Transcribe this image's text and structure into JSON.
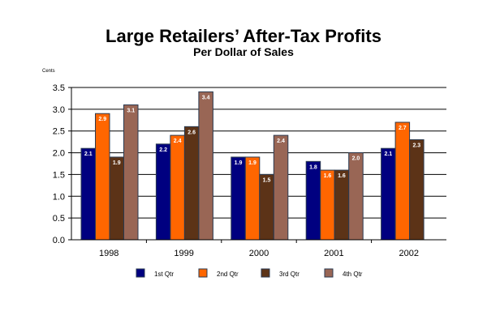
{
  "chart_data": {
    "type": "bar",
    "title": "Large Retailers’ After-Tax Profits",
    "subtitle": "Per Dollar of Sales",
    "ylabel": "Cents",
    "xlabel": "",
    "ylim": [
      0,
      3.5
    ],
    "yticks": [
      "0.0",
      "0.5",
      "1.0",
      "1.5",
      "2.0",
      "2.5",
      "3.0",
      "3.5"
    ],
    "grid": true,
    "legend_position": "bottom",
    "categories": [
      "1998",
      "1999",
      "2000",
      "2001",
      "2002"
    ],
    "series": [
      {
        "name": "1st Qtr",
        "color": "#000080",
        "values": [
          2.1,
          2.2,
          1.9,
          1.8,
          2.1
        ],
        "labels": [
          "2.1",
          "2.2",
          "1.9",
          "1.8",
          "2.1"
        ]
      },
      {
        "name": "2nd Qtr",
        "color": "#ff6600",
        "values": [
          2.9,
          2.4,
          1.9,
          1.6,
          2.7
        ],
        "labels": [
          "2.9",
          "2.4",
          "1.9",
          "1.6",
          "2.7"
        ]
      },
      {
        "name": "3rd Qtr",
        "color": "#5c3317",
        "values": [
          1.9,
          2.6,
          1.5,
          1.6,
          2.3
        ],
        "labels": [
          "1.9",
          "2.6",
          "1.5",
          "1.6",
          "2.3"
        ]
      },
      {
        "name": "4th Qtr",
        "color": "#996655",
        "values": [
          3.1,
          3.4,
          2.4,
          2.0,
          null
        ],
        "labels": [
          "3.1",
          "3.4",
          "2.4",
          "2.0",
          null
        ]
      }
    ]
  }
}
